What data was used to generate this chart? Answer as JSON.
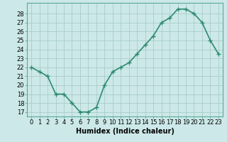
{
  "x": [
    0,
    1,
    2,
    3,
    4,
    5,
    6,
    7,
    8,
    9,
    10,
    11,
    12,
    13,
    14,
    15,
    16,
    17,
    18,
    19,
    20,
    21,
    22,
    23
  ],
  "y": [
    22,
    21.5,
    21,
    19,
    19,
    18,
    17,
    17,
    17.5,
    20,
    21.5,
    22,
    22.5,
    23.5,
    24.5,
    25.5,
    27,
    27.5,
    28.5,
    28.5,
    28,
    27,
    25,
    23.5
  ],
  "line_color": "#2e8b72",
  "marker": "+",
  "marker_size": 4,
  "bg_color": "#cce8e8",
  "grid_color": "#aacccc",
  "xlabel": "Humidex (Indice chaleur)",
  "xlabel_fontsize": 7,
  "tick_fontsize": 6,
  "xlim": [
    -0.5,
    23.5
  ],
  "ylim": [
    16.5,
    29.2
  ],
  "yticks": [
    17,
    18,
    19,
    20,
    21,
    22,
    23,
    24,
    25,
    26,
    27,
    28
  ],
  "xticks": [
    0,
    1,
    2,
    3,
    4,
    5,
    6,
    7,
    8,
    9,
    10,
    11,
    12,
    13,
    14,
    15,
    16,
    17,
    18,
    19,
    20,
    21,
    22,
    23
  ],
  "linewidth": 1.2
}
